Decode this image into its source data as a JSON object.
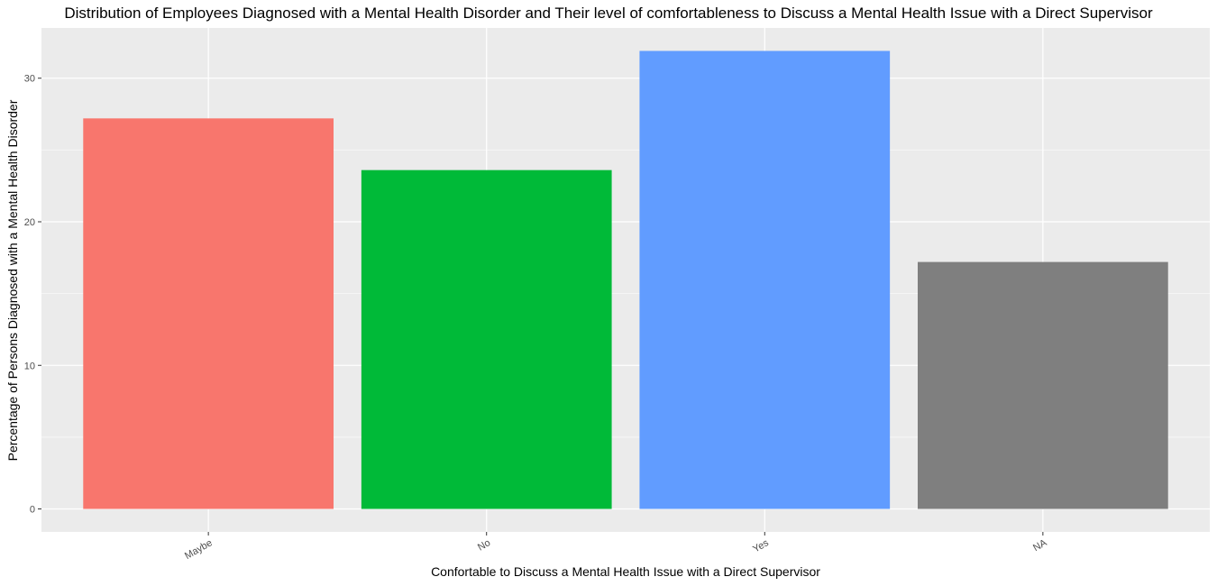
{
  "chart_data": {
    "type": "bar",
    "title": "Distribution of Employees Diagnosed with a Mental Health Disorder and Their level of comfortableness to Discuss a Mental Health Issue with a Direct Supervisor",
    "xlabel": "Confortable to Discuss a Mental Health Issue with a Direct Supervisor",
    "ylabel": "Percentage of Persons Diagnosed with a Mental Health Disorder",
    "categories": [
      "Maybe",
      "No",
      "Yes",
      "NA"
    ],
    "values": [
      27.2,
      23.6,
      31.9,
      17.2
    ],
    "colors": [
      "#F8766D",
      "#00BA38",
      "#619CFF",
      "#7F7F7F"
    ],
    "ylim": [
      -1.6,
      33.5
    ],
    "yticks": [
      0,
      10,
      20,
      30
    ],
    "grid": true,
    "legend": "none",
    "panel_background": "#EBEBEB",
    "grid_color": "#FFFFFF"
  }
}
